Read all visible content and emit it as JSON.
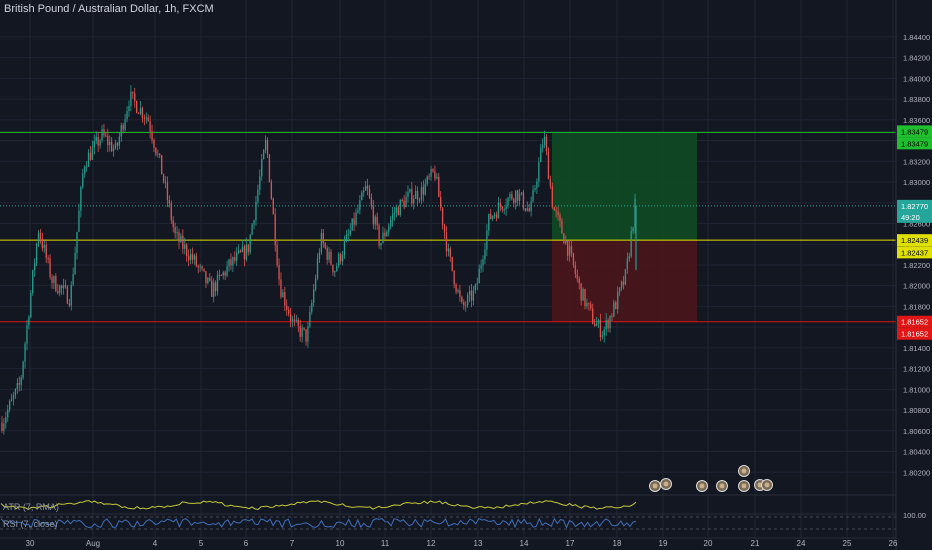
{
  "header": {
    "title": "British Pound / Australian Dollar, 1h, FXCM"
  },
  "colors": {
    "background": "#131722",
    "grid": "#1f2433",
    "up_candle": "#2a9c8e",
    "down_candle": "#e0524f",
    "resistance": "#1fbf2f",
    "pivot": "#e0e000",
    "support": "#e01515",
    "current": "#26a69a",
    "target_zone": "#0f4a22",
    "stop_zone": "#4a151b",
    "atr_line": "#c8c838",
    "rsi_line": "#3f6fb8",
    "axis_text": "#b2b5be"
  },
  "indicators": {
    "atr_label": "ATR (7, RMA)",
    "rsi_label": "RSI (7, close)",
    "rsi_axis_value": "100.00"
  },
  "chart_data": {
    "type": "candlestick",
    "title": "British Pound / Australian Dollar, 1h, FXCM",
    "ylim": [
      1.8,
      1.8464
    ],
    "y_ticks": [
      "1.84400",
      "1.84200",
      "1.84000",
      "1.83800",
      "1.83600",
      "1.83400",
      "1.83200",
      "1.83000",
      "1.82800",
      "1.82600",
      "1.82400",
      "1.82200",
      "1.82000",
      "1.81800",
      "1.81600",
      "1.81400",
      "1.81200",
      "1.81000",
      "1.80800",
      "1.80600",
      "1.80400",
      "1.80200"
    ],
    "x_ticks": [
      "30",
      "Aug",
      "4",
      "5",
      "6",
      "7",
      "10",
      "11",
      "12",
      "13",
      "14",
      "17",
      "18",
      "19",
      "20",
      "21",
      "24",
      "25",
      "26"
    ],
    "price_path": [
      [
        0,
        1.8068
      ],
      [
        0.02,
        1.8105
      ],
      [
        0.04,
        1.8255
      ],
      [
        0.055,
        1.8205
      ],
      [
        0.075,
        1.8188
      ],
      [
        0.09,
        1.8318
      ],
      [
        0.11,
        1.8345
      ],
      [
        0.125,
        1.833
      ],
      [
        0.14,
        1.8382
      ],
      [
        0.16,
        1.8362
      ],
      [
        0.175,
        1.8312
      ],
      [
        0.19,
        1.8248
      ],
      [
        0.21,
        1.8225
      ],
      [
        0.23,
        1.8195
      ],
      [
        0.25,
        1.822
      ],
      [
        0.27,
        1.8235
      ],
      [
        0.29,
        1.834
      ],
      [
        0.305,
        1.82
      ],
      [
        0.32,
        1.8162
      ],
      [
        0.335,
        1.815
      ],
      [
        0.35,
        1.8245
      ],
      [
        0.365,
        1.8215
      ],
      [
        0.385,
        1.8258
      ],
      [
        0.4,
        1.8295
      ],
      [
        0.415,
        1.824
      ],
      [
        0.43,
        1.827
      ],
      [
        0.445,
        1.8285
      ],
      [
        0.46,
        1.829
      ],
      [
        0.475,
        1.831
      ],
      [
        0.49,
        1.823
      ],
      [
        0.505,
        1.8178
      ],
      [
        0.52,
        1.8195
      ],
      [
        0.535,
        1.8265
      ],
      [
        0.55,
        1.828
      ],
      [
        0.565,
        1.829
      ],
      [
        0.58,
        1.827
      ],
      [
        0.595,
        1.8345
      ],
      [
        0.605,
        1.8275
      ],
      [
        0.62,
        1.824
      ],
      [
        0.635,
        1.8195
      ],
      [
        0.65,
        1.8165
      ],
      [
        0.66,
        1.8155
      ],
      [
        0.675,
        1.8185
      ],
      [
        0.685,
        1.821
      ],
      [
        0.695,
        1.8277
      ]
    ],
    "levels": [
      {
        "name": "resistance",
        "price": 1.83479,
        "label": "1.83479"
      },
      {
        "name": "entry",
        "price": 1.82437,
        "label": "1.82437"
      },
      {
        "name": "pivot",
        "price": 1.82439,
        "label": "1.82439"
      },
      {
        "name": "support",
        "price": 1.81652,
        "label": "1.81652"
      }
    ],
    "current_price": {
      "value": 1.8277,
      "label": "1.82770",
      "countdown": "49:20"
    },
    "position": {
      "entry": 1.82437,
      "target": 1.83479,
      "stop": 1.81652,
      "type": "long"
    }
  }
}
